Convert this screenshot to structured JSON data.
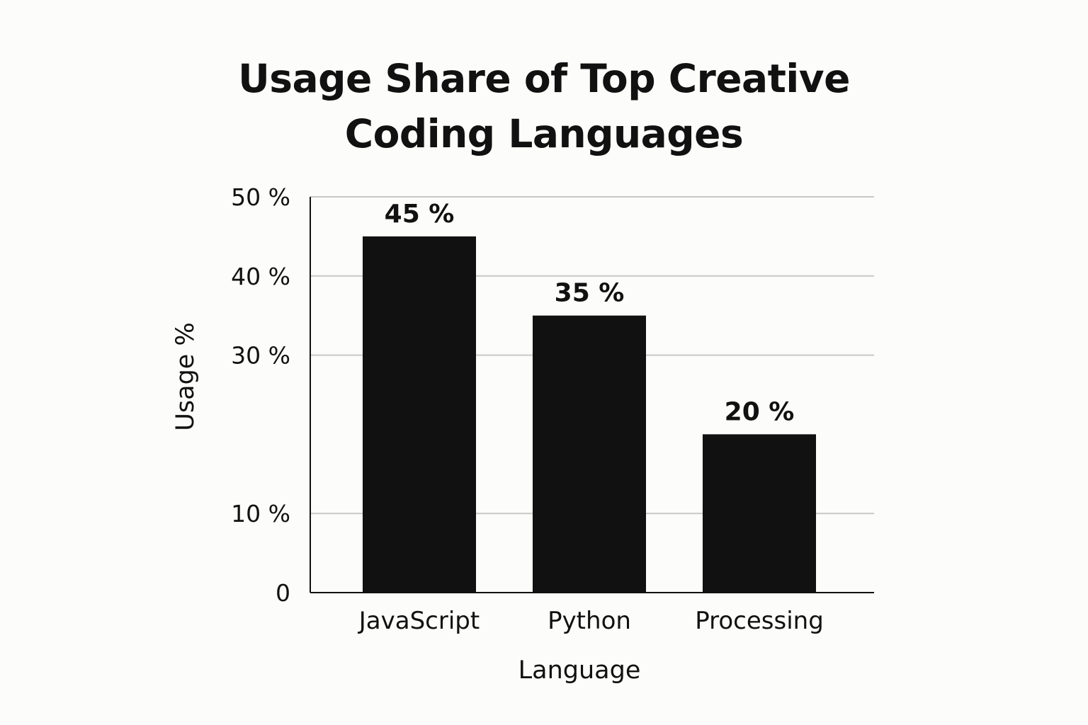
{
  "chart_data": {
    "type": "bar",
    "title_lines": [
      "Usage Share of Top Creative",
      "Coding Languages"
    ],
    "xlabel": "Language",
    "ylabel": "Usage %",
    "categories": [
      "JavaScript",
      "Python",
      "Processing"
    ],
    "values": [
      45,
      35,
      20
    ],
    "data_labels": [
      "45 %",
      "35 %",
      "20 %"
    ],
    "y_ticks": [
      {
        "value": 0,
        "label": "0"
      },
      {
        "value": 10,
        "label": "10 %"
      },
      {
        "value": 30,
        "label": "30 %"
      },
      {
        "value": 40,
        "label": "40 %"
      },
      {
        "value": 50,
        "label": "50 %"
      }
    ],
    "ylim": [
      0,
      50
    ],
    "grid": true,
    "legend": "none",
    "bar_color": "#111111",
    "grid_color": "#c8c8c8",
    "axis_color": "#111111"
  }
}
